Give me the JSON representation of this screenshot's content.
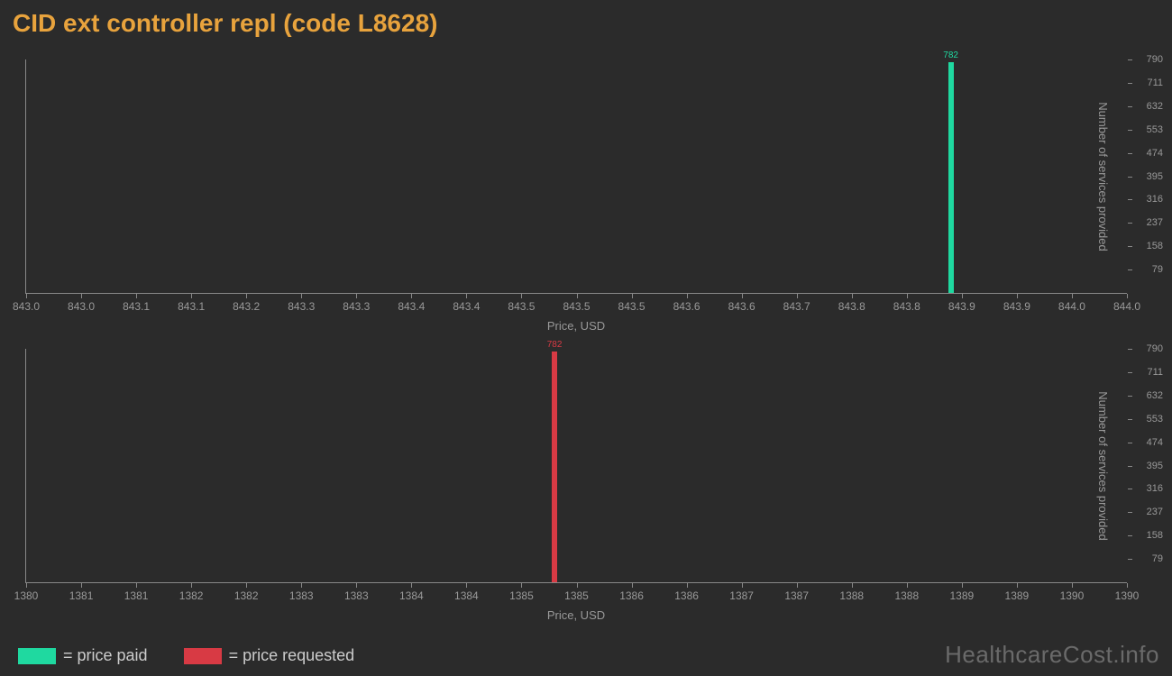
{
  "title": "CID ext controller repl (code L8628)",
  "background_color": "#2b2b2b",
  "title_color": "#e8a33d",
  "axis_color": "#888888",
  "tick_label_color": "#999999",
  "watermark": "HealthcareCost.info",
  "watermark_color": "#6a6a6a",
  "legend": [
    {
      "swatch_color": "#1fd9a0",
      "label": "= price paid"
    },
    {
      "swatch_color": "#d83a44",
      "label": "= price requested"
    }
  ],
  "charts": [
    {
      "type": "bar",
      "xlabel": "Price, USD",
      "ylabel": "Number of services provided",
      "bar": {
        "x": 843.84,
        "value": 782,
        "color": "#1fd9a0",
        "label_color": "#1fd9a0"
      },
      "xlim": [
        843,
        844
      ],
      "xtick_step": 0.05,
      "xtick_decimals": 1,
      "ylim": [
        0,
        790
      ],
      "yticks": [
        79,
        158,
        237,
        316,
        395,
        474,
        553,
        632,
        711,
        790
      ]
    },
    {
      "type": "bar",
      "xlabel": "Price, USD",
      "ylabel": "Number of services provided",
      "bar": {
        "x": 1384.8,
        "value": 782,
        "color": "#d83a44",
        "label_color": "#d83a44"
      },
      "xlim": [
        1380,
        1390
      ],
      "xtick_step": 0.5,
      "xtick_decimals": 0,
      "ylim": [
        0,
        790
      ],
      "yticks": [
        79,
        158,
        237,
        316,
        395,
        474,
        553,
        632,
        711,
        790
      ]
    }
  ]
}
